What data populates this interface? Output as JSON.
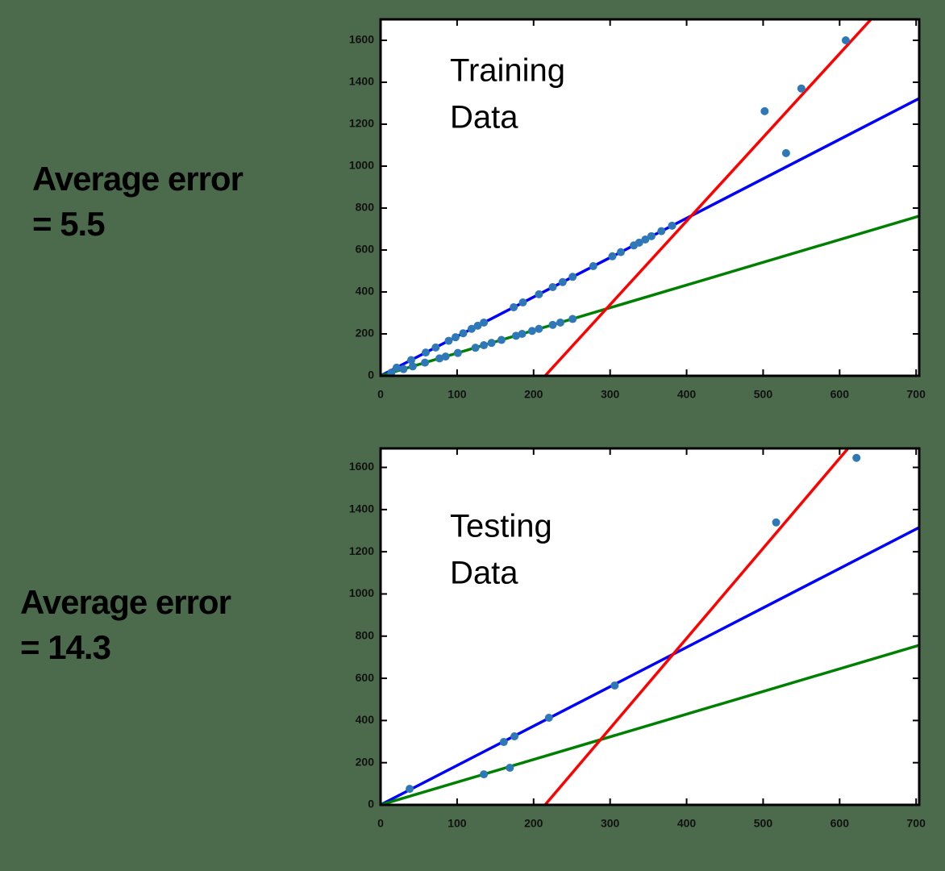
{
  "chart_data": [
    {
      "type": "scatter",
      "title_lines": [
        "Training",
        "Data"
      ],
      "side_note": [
        "Average error",
        "= 5.5"
      ],
      "xlim": [
        0,
        704
      ],
      "ylim": [
        0,
        1700
      ],
      "xticks": [
        0,
        100,
        200,
        300,
        400,
        500,
        600,
        700
      ],
      "yticks": [
        0,
        200,
        400,
        600,
        800,
        1000,
        1200,
        1400,
        1600
      ],
      "point_color": "#2e78b8",
      "x": [
        21,
        40,
        59,
        72,
        89,
        98,
        108,
        119,
        127,
        135,
        174,
        186,
        207,
        225,
        238,
        251,
        278,
        303,
        314,
        331,
        338,
        346,
        354,
        367,
        381,
        14,
        30,
        42,
        58,
        77,
        85,
        101,
        124,
        135,
        145,
        158,
        177,
        185,
        198,
        207,
        225,
        235,
        251,
        502,
        530,
        550,
        608
      ],
      "values": [
        39,
        75,
        111,
        135,
        167,
        184,
        203,
        224,
        239,
        254,
        327,
        350,
        389,
        423,
        447,
        472,
        523,
        570,
        590,
        622,
        635,
        650,
        666,
        690,
        716,
        15,
        32,
        45,
        63,
        83,
        92,
        109,
        134,
        146,
        157,
        171,
        191,
        200,
        214,
        224,
        243,
        254,
        271,
        1262,
        1062,
        1370,
        1600
      ],
      "fits": [
        {
          "color": "#0000ff",
          "x": [
            0,
            704
          ],
          "values": [
            0,
            1323
          ]
        },
        {
          "color": "#008000",
          "x": [
            0,
            704
          ],
          "values": [
            0,
            762
          ]
        },
        {
          "color": "#ff0000",
          "x": [
            215,
            641
          ],
          "values": [
            0,
            1700
          ]
        }
      ]
    },
    {
      "type": "scatter",
      "title_lines": [
        "Testing",
        "Data"
      ],
      "side_note": [
        "Average error",
        "= 14.3"
      ],
      "xlim": [
        0,
        704
      ],
      "ylim": [
        0,
        1690
      ],
      "xticks": [
        0,
        100,
        200,
        300,
        400,
        500,
        600,
        700
      ],
      "yticks": [
        0,
        200,
        400,
        600,
        800,
        1000,
        1200,
        1400,
        1600
      ],
      "point_color": "#2e78b8",
      "x": [
        38,
        135,
        161,
        169,
        175,
        220,
        306,
        517,
        622
      ],
      "values": [
        76,
        145,
        298,
        176,
        325,
        413,
        566,
        1339,
        1645
      ],
      "fits": [
        {
          "color": "#0000ff",
          "x": [
            0,
            704
          ],
          "values": [
            0,
            1315
          ]
        },
        {
          "color": "#008000",
          "x": [
            0,
            704
          ],
          "values": [
            0,
            757
          ]
        },
        {
          "color": "#ff0000",
          "x": [
            215,
            611
          ],
          "values": [
            0,
            1690
          ]
        }
      ]
    }
  ]
}
